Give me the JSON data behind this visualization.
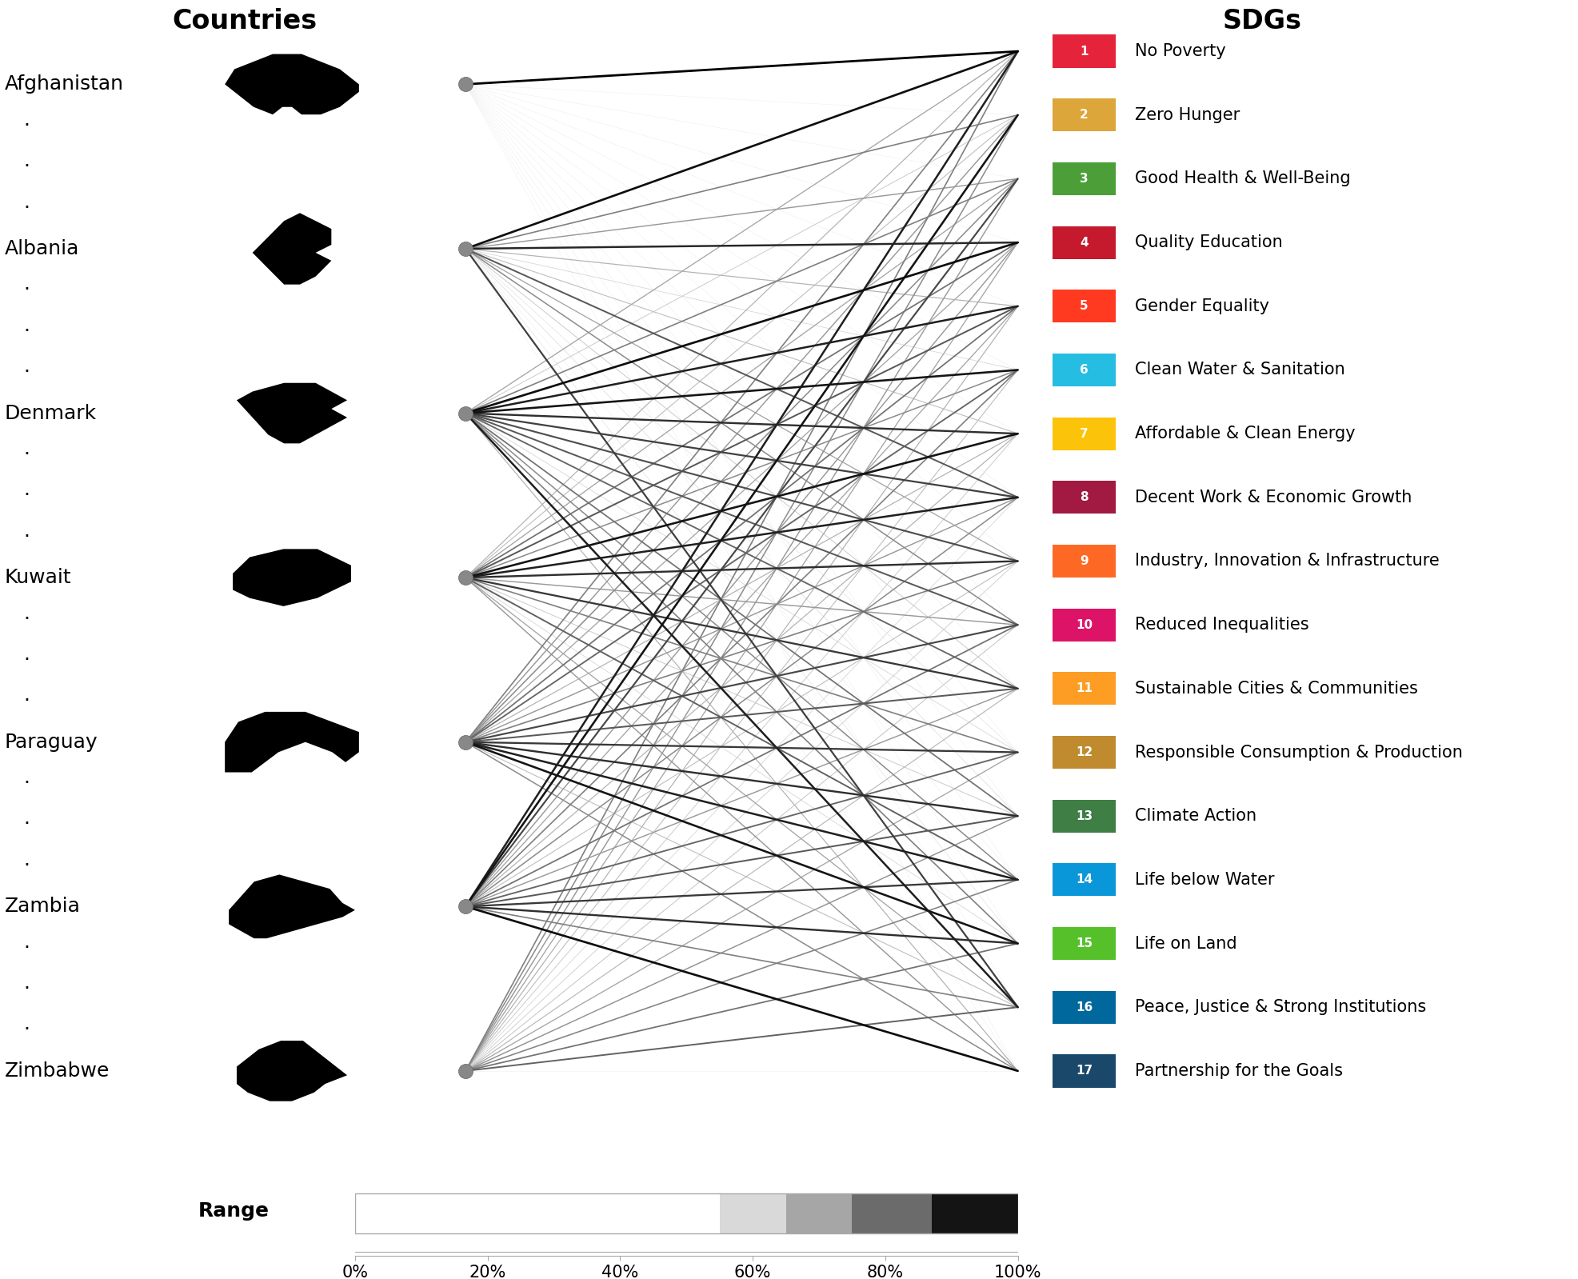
{
  "countries": [
    "Afghanistan",
    "Albania",
    "Denmark",
    "Kuwait",
    "Paraguay",
    "Zambia",
    "Zimbabwe"
  ],
  "sdgs": [
    {
      "num": 1,
      "label": "No Poverty",
      "color": "#E5243B"
    },
    {
      "num": 2,
      "label": "Zero Hunger",
      "color": "#DDA63A"
    },
    {
      "num": 3,
      "label": "Good Health & Well-Being",
      "color": "#4C9F38"
    },
    {
      "num": 4,
      "label": "Quality Education",
      "color": "#C5192D"
    },
    {
      "num": 5,
      "label": "Gender Equality",
      "color": "#FF3A21"
    },
    {
      "num": 6,
      "label": "Clean Water & Sanitation",
      "color": "#26BDE2"
    },
    {
      "num": 7,
      "label": "Affordable & Clean Energy",
      "color": "#FCC30B"
    },
    {
      "num": 8,
      "label": "Decent Work & Economic Growth",
      "color": "#A21942"
    },
    {
      "num": 9,
      "label": "Industry, Innovation & Infrastructure",
      "color": "#FD6925"
    },
    {
      "num": 10,
      "label": "Reduced Inequalities",
      "color": "#DD1367"
    },
    {
      "num": 11,
      "label": "Sustainable Cities & Communities",
      "color": "#FD9D24"
    },
    {
      "num": 12,
      "label": "Responsible Consumption & Production",
      "color": "#BF8B2E"
    },
    {
      "num": 13,
      "label": "Climate Action",
      "color": "#3F7E44"
    },
    {
      "num": 14,
      "label": "Life below Water",
      "color": "#0A97D9"
    },
    {
      "num": 15,
      "label": "Life on Land",
      "color": "#56C02B"
    },
    {
      "num": 16,
      "label": "Peace, Justice & Strong Institutions",
      "color": "#00689D"
    },
    {
      "num": 17,
      "label": "Partnership for the Goals",
      "color": "#19486A"
    }
  ],
  "line_strengths": {
    "Afghanistan": [
      1.0,
      0.05,
      0.05,
      0.05,
      0.05,
      0.05,
      0.05,
      0.05,
      0.05,
      0.05,
      0.05,
      0.05,
      0.05,
      0.05,
      0.05,
      0.05,
      0.05
    ],
    "Albania": [
      0.95,
      0.5,
      0.4,
      0.85,
      0.3,
      0.15,
      0.25,
      0.65,
      0.35,
      0.45,
      0.2,
      0.1,
      0.12,
      0.05,
      0.1,
      0.75,
      0.05
    ],
    "Denmark": [
      0.35,
      0.2,
      0.5,
      0.95,
      0.88,
      0.92,
      0.82,
      0.75,
      0.7,
      0.65,
      0.6,
      0.15,
      0.55,
      0.45,
      0.5,
      0.88,
      0.3
    ],
    "Kuwait": [
      0.3,
      0.25,
      0.35,
      0.55,
      0.65,
      0.45,
      0.92,
      0.88,
      0.82,
      0.4,
      0.78,
      0.5,
      0.2,
      0.62,
      0.15,
      0.35,
      0.4
    ],
    "Paraguay": [
      0.5,
      0.4,
      0.45,
      0.35,
      0.55,
      0.6,
      0.3,
      0.4,
      0.5,
      0.72,
      0.65,
      0.78,
      0.82,
      0.88,
      0.92,
      0.25,
      0.45
    ],
    "Zambia": [
      0.88,
      0.92,
      0.72,
      0.4,
      0.35,
      0.5,
      0.3,
      0.45,
      0.25,
      0.55,
      0.4,
      0.6,
      0.65,
      0.78,
      0.82,
      0.5,
      0.95
    ],
    "Zimbabwe": [
      0.5,
      0.45,
      0.4,
      0.35,
      0.3,
      0.25,
      0.2,
      0.15,
      0.18,
      0.22,
      0.28,
      0.35,
      0.42,
      0.48,
      0.55,
      0.62,
      0.05
    ]
  },
  "bg_color": "#ffffff",
  "title_countries": "Countries",
  "title_sdgs": "SDGs",
  "node_color": "#888888",
  "legend_colors": [
    "#ffffff",
    "#ffffff",
    "#ffffff",
    "#e8e8e8",
    "#c0c0c0",
    "#909090",
    "#505050",
    "#101010"
  ],
  "legend_breakpoints": [
    0,
    10,
    50,
    60,
    70,
    80,
    90,
    100
  ]
}
